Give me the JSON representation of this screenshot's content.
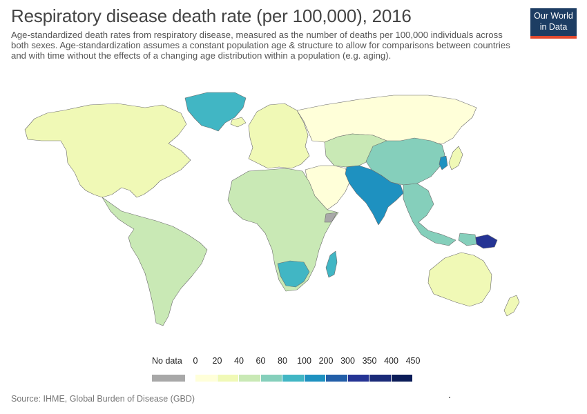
{
  "header": {
    "title": "Respiratory disease death rate (per 100,000), 2016",
    "subtitle": "Age-standardized death rates from respiratory disease, measured as the number of deaths per 100,000 individuals across both sexes. Age-standardization assumes a constant population age & structure to allow for comparisons between countries and with time without the effects of a changing age distribution within a population (e.g. aging).",
    "logo_line1": "Our World",
    "logo_line2": "in Data"
  },
  "legend": {
    "no_data_label": "No data",
    "no_data_color": "#a8a8a8",
    "ticks": [
      "0",
      "20",
      "40",
      "60",
      "80",
      "100",
      "200",
      "300",
      "350",
      "400",
      "450"
    ],
    "colors": [
      "#ffffd9",
      "#f0f9b6",
      "#c9e9b5",
      "#85cfbb",
      "#41b6c4",
      "#1e91c0",
      "#225ea8",
      "#253494",
      "#1a2a78",
      "#0b1c58"
    ]
  },
  "regions": [
    {
      "name": "greenland",
      "color": "#41b6c4"
    },
    {
      "name": "north-america",
      "color": "#f0f9b6"
    },
    {
      "name": "latin-america",
      "color": "#c9e9b5"
    },
    {
      "name": "europe",
      "color": "#f0f9b6"
    },
    {
      "name": "russia",
      "color": "#ffffd9"
    },
    {
      "name": "africa",
      "color": "#c9e9b5"
    },
    {
      "name": "middle-east",
      "color": "#ffffd9"
    },
    {
      "name": "central-asia",
      "color": "#c9e9b5"
    },
    {
      "name": "china",
      "color": "#85cfbb"
    },
    {
      "name": "south-asia",
      "color": "#1e91c0"
    },
    {
      "name": "southeast-asia",
      "color": "#85cfbb"
    },
    {
      "name": "australia",
      "color": "#f0f9b6"
    },
    {
      "name": "papua-new-guinea",
      "color": "#253494"
    }
  ],
  "footer": {
    "source": "Source: IHME, Global Burden of Disease (GBD)"
  }
}
